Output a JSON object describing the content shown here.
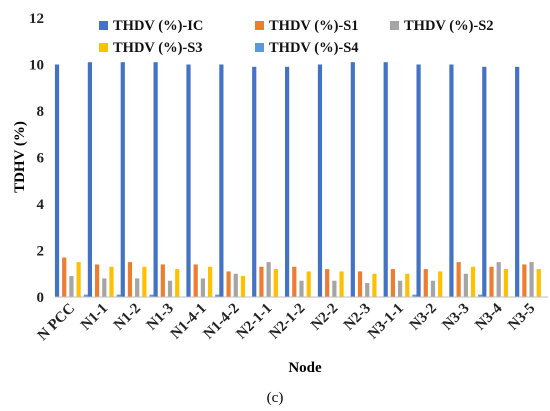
{
  "caption": "(c)",
  "chart_data": {
    "type": "bar",
    "title": "",
    "xlabel": "Node",
    "ylabel": "TDHV (%)",
    "ylim": [
      0,
      12
    ],
    "yticks": [
      "0",
      "2",
      "4",
      "6",
      "8",
      "10",
      "12"
    ],
    "grid": false,
    "legend_position": "top",
    "categories": [
      "N PCC",
      "N1-1",
      "N1-2",
      "N1-3",
      "N1-4-1",
      "N1-4-2",
      "N2-1-1",
      "N2-1-2",
      "N2-2",
      "N2-3",
      "N3-1-1",
      "N3-2",
      "N3-3",
      "N3-4",
      "N3-5"
    ],
    "series": [
      {
        "name": "THDV (%)-IC",
        "color": "#4472C4",
        "values": [
          10.0,
          10.1,
          10.1,
          10.1,
          10.0,
          10.0,
          9.9,
          9.9,
          10.0,
          10.1,
          10.1,
          10.0,
          10.0,
          9.9,
          9.9
        ]
      },
      {
        "name": "THDV (%)-S1",
        "color": "#ED7D31",
        "values": [
          1.7,
          1.4,
          1.5,
          1.4,
          1.4,
          1.1,
          1.3,
          1.3,
          1.2,
          1.1,
          1.2,
          1.2,
          1.5,
          1.3,
          1.4
        ]
      },
      {
        "name": "THDV (%)-S2",
        "color": "#A5A5A5",
        "values": [
          0.9,
          0.8,
          0.8,
          0.7,
          0.8,
          1.0,
          1.5,
          0.7,
          0.7,
          0.6,
          0.7,
          0.7,
          1.0,
          1.5,
          1.5
        ]
      },
      {
        "name": "THDV (%)-S3",
        "color": "#FFC000",
        "values": [
          1.5,
          1.3,
          1.3,
          1.2,
          1.3,
          0.9,
          1.2,
          1.1,
          1.1,
          1.0,
          1.0,
          1.1,
          1.3,
          1.2,
          1.2
        ]
      },
      {
        "name": "THDV (%)-S4",
        "color": "#5B9BD5",
        "values": [
          0.1,
          0.1,
          0.1,
          0.0,
          0.1,
          0.0,
          0.0,
          0.0,
          0.0,
          0.0,
          0.1,
          0.0,
          0.1,
          0.0,
          0.0
        ]
      }
    ]
  }
}
